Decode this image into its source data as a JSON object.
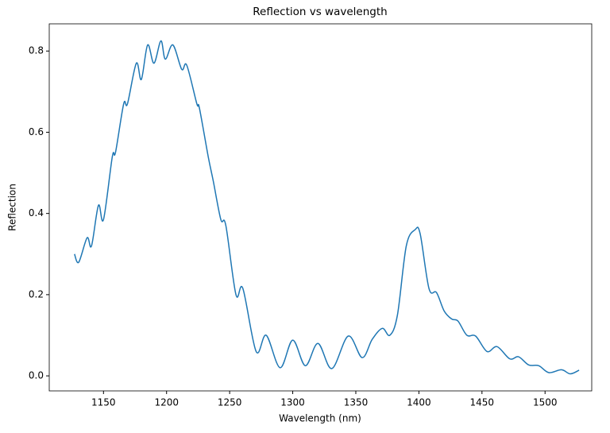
{
  "chart_data": {
    "type": "line",
    "title": "Reflection vs wavelength",
    "xlabel": "Wavelength (nm)",
    "ylabel": "Reflection",
    "x": [
      1127,
      1130.4,
      1137,
      1140.5,
      1146,
      1150,
      1157,
      1159.5,
      1166,
      1169,
      1176,
      1180,
      1185,
      1190,
      1195.5,
      1199,
      1205,
      1212,
      1216,
      1224,
      1226,
      1233,
      1237,
      1243,
      1247,
      1255,
      1260.5,
      1271,
      1279,
      1290,
      1300,
      1310,
      1320,
      1331,
      1344,
      1355,
      1363,
      1371,
      1377,
      1383,
      1390,
      1397,
      1401,
      1408,
      1414,
      1420,
      1426,
      1431,
      1438,
      1445,
      1454,
      1462,
      1472,
      1479,
      1487,
      1495,
      1503,
      1513,
      1520,
      1527
    ],
    "series": [
      {
        "name": "Reflection",
        "color": "#1f77b4",
        "values": [
          0.3,
          0.28,
          0.34,
          0.32,
          0.42,
          0.385,
          0.54,
          0.55,
          0.67,
          0.67,
          0.77,
          0.73,
          0.815,
          0.77,
          0.825,
          0.78,
          0.815,
          0.755,
          0.765,
          0.67,
          0.66,
          0.54,
          0.48,
          0.385,
          0.37,
          0.2,
          0.215,
          0.06,
          0.1,
          0.02,
          0.088,
          0.025,
          0.08,
          0.018,
          0.098,
          0.045,
          0.09,
          0.117,
          0.1,
          0.15,
          0.32,
          0.36,
          0.35,
          0.215,
          0.205,
          0.16,
          0.14,
          0.135,
          0.1,
          0.098,
          0.06,
          0.072,
          0.042,
          0.047,
          0.027,
          0.025,
          0.008,
          0.015,
          0.005,
          0.014
        ]
      }
    ],
    "xlim": [
      1107,
      1537
    ],
    "ylim": [
      -0.037,
      0.867
    ],
    "xticks": [
      1150,
      1200,
      1250,
      1300,
      1350,
      1400,
      1450,
      1500
    ],
    "yticks": [
      {
        "value": 0,
        "label": "0.0"
      },
      0.2,
      0.4,
      0.6,
      0.8
    ],
    "grid": false
  }
}
